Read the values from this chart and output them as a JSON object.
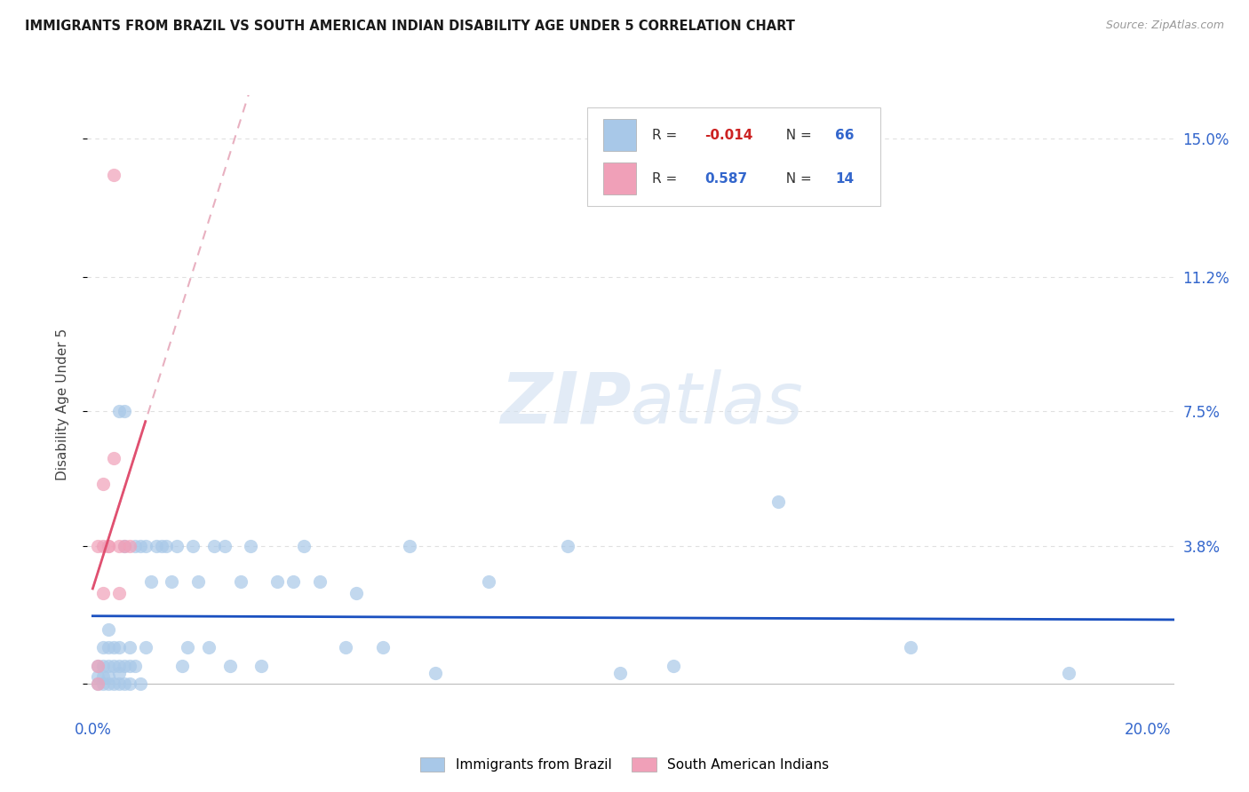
{
  "title": "IMMIGRANTS FROM BRAZIL VS SOUTH AMERICAN INDIAN DISABILITY AGE UNDER 5 CORRELATION CHART",
  "source": "Source: ZipAtlas.com",
  "ylabel": "Disability Age Under 5",
  "xlim": [
    -0.001,
    0.205
  ],
  "ylim": [
    -0.008,
    0.162
  ],
  "xticks": [
    0.0,
    0.04,
    0.08,
    0.12,
    0.16,
    0.2
  ],
  "ytick_vals": [
    0.0,
    0.038,
    0.075,
    0.112,
    0.15
  ],
  "ytick_labels_right": [
    "",
    "3.8%",
    "7.5%",
    "11.2%",
    "15.0%"
  ],
  "brazil_color": "#a8c8e8",
  "sai_color": "#f0a0b8",
  "brazil_line_color": "#1a50c0",
  "sai_solid_color": "#e05070",
  "sai_dash_color": "#e8b0c0",
  "watermark_color": "#d0dff0",
  "background_color": "#ffffff",
  "grid_color": "#e0e0e0",
  "brazil_scatter_x": [
    0.001,
    0.001,
    0.001,
    0.002,
    0.002,
    0.002,
    0.002,
    0.003,
    0.003,
    0.003,
    0.003,
    0.003,
    0.004,
    0.004,
    0.004,
    0.005,
    0.005,
    0.005,
    0.005,
    0.006,
    0.006,
    0.006,
    0.007,
    0.007,
    0.007,
    0.008,
    0.008,
    0.009,
    0.009,
    0.01,
    0.01,
    0.011,
    0.012,
    0.013,
    0.014,
    0.015,
    0.016,
    0.017,
    0.018,
    0.019,
    0.02,
    0.022,
    0.023,
    0.025,
    0.026,
    0.028,
    0.03,
    0.032,
    0.035,
    0.038,
    0.04,
    0.043,
    0.048,
    0.05,
    0.055,
    0.06,
    0.065,
    0.075,
    0.09,
    0.1,
    0.11,
    0.13,
    0.155,
    0.185,
    0.005,
    0.006
  ],
  "brazil_scatter_y": [
    0.0,
    0.002,
    0.005,
    0.0,
    0.002,
    0.005,
    0.01,
    0.0,
    0.002,
    0.005,
    0.01,
    0.015,
    0.0,
    0.005,
    0.01,
    0.0,
    0.003,
    0.005,
    0.01,
    0.0,
    0.005,
    0.038,
    0.0,
    0.005,
    0.01,
    0.005,
    0.038,
    0.0,
    0.038,
    0.01,
    0.038,
    0.028,
    0.038,
    0.038,
    0.038,
    0.028,
    0.038,
    0.005,
    0.01,
    0.038,
    0.028,
    0.01,
    0.038,
    0.038,
    0.005,
    0.028,
    0.038,
    0.005,
    0.028,
    0.028,
    0.038,
    0.028,
    0.01,
    0.025,
    0.01,
    0.038,
    0.003,
    0.028,
    0.038,
    0.003,
    0.005,
    0.05,
    0.01,
    0.003,
    0.075,
    0.075
  ],
  "sai_scatter_x": [
    0.001,
    0.001,
    0.001,
    0.002,
    0.002,
    0.002,
    0.003,
    0.003,
    0.004,
    0.004,
    0.005,
    0.005,
    0.006,
    0.007
  ],
  "sai_scatter_y": [
    0.0,
    0.005,
    0.038,
    0.025,
    0.038,
    0.055,
    0.038,
    0.038,
    0.062,
    0.14,
    0.025,
    0.038,
    0.038,
    0.038
  ]
}
